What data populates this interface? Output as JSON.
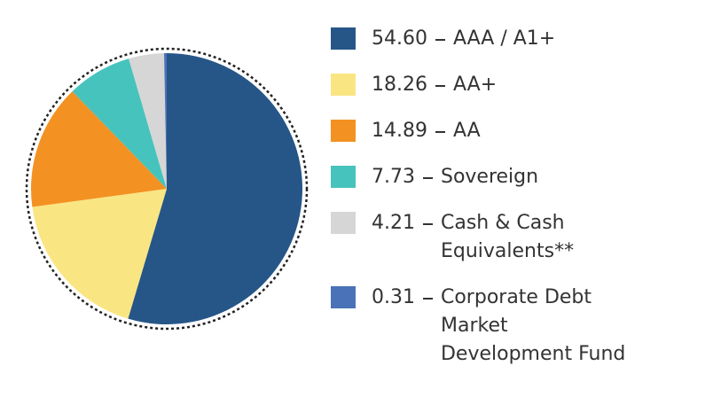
{
  "chart_data": {
    "type": "pie",
    "categories": [
      "AAA / A1+",
      "AA+",
      "AA",
      "Sovereign",
      "Cash & Cash Equivalents**",
      "Corporate Debt Market Development Fund"
    ],
    "values": [
      54.6,
      18.26,
      14.89,
      7.73,
      4.21,
      0.31
    ],
    "value_labels": [
      "54.60",
      "18.26",
      "14.89",
      "7.73",
      "4.21",
      "0.31"
    ],
    "colors": [
      "#265687",
      "#fae583",
      "#f39122",
      "#47c3bd",
      "#d6d6d6",
      "#4a72b8"
    ],
    "start_angle": 0,
    "direction": "clockwise"
  }
}
